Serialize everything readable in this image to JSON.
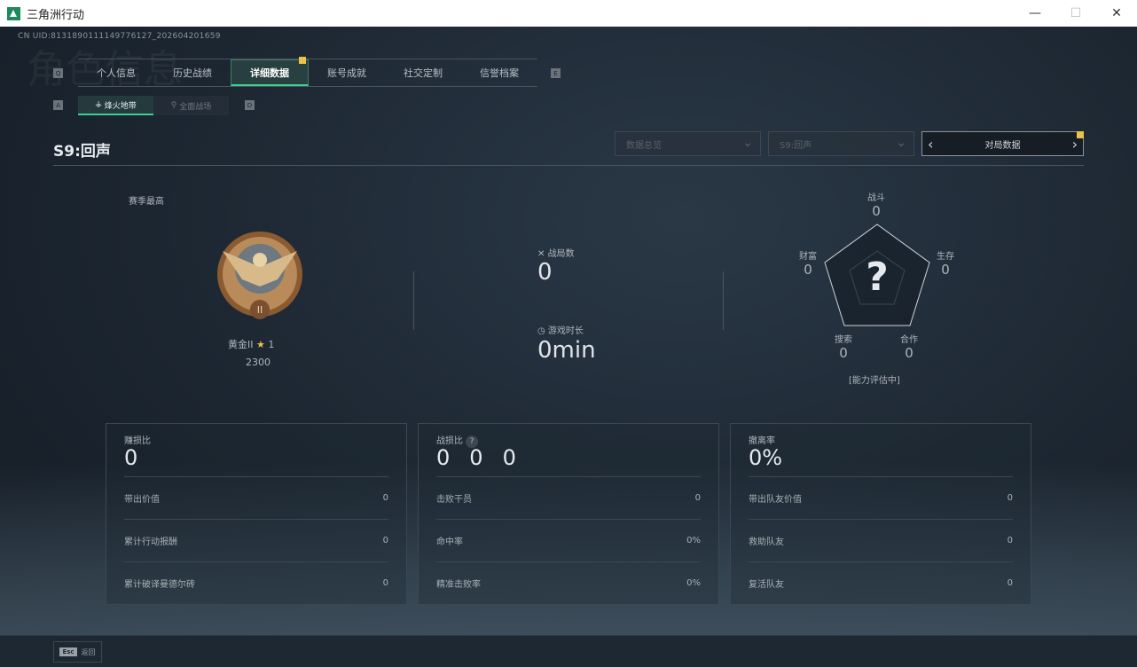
{
  "window": {
    "title": "三角洲行动",
    "minimize": "—",
    "maximize": "☐",
    "close": "✕"
  },
  "uid": "CN UID:8131890111149776127_202604201659",
  "watermark": "角色信息",
  "keys": {
    "prev_tab": "Q",
    "next_tab": "E",
    "prev_sub": "A",
    "next_sub": "D"
  },
  "tabs": [
    {
      "label": "个人信息"
    },
    {
      "label": "历史战绩"
    },
    {
      "label": "详细数据",
      "active": true
    },
    {
      "label": "账号成就"
    },
    {
      "label": "社交定制"
    },
    {
      "label": "信誉档案"
    }
  ],
  "subtabs": [
    {
      "label": "烽火地带",
      "icon": "flame-icon",
      "active": true
    },
    {
      "label": "全面战场",
      "icon": "battle-icon"
    }
  ],
  "season_title": "S9:回声",
  "filters": {
    "overview": "数据总览",
    "season": "S9:回声",
    "mode": "对局数据"
  },
  "rank": {
    "label": "赛季最高",
    "tier": "黄金II",
    "stars": "1",
    "score": "2300"
  },
  "summary": {
    "matches_label": "战局数",
    "matches": "0",
    "time_label": "游戏时长",
    "time": "0min"
  },
  "radar": {
    "center": "?",
    "status": "[能力评估中]",
    "axes": [
      {
        "label": "战斗",
        "value": "0"
      },
      {
        "label": "生存",
        "value": "0"
      },
      {
        "label": "合作",
        "value": "0"
      },
      {
        "label": "搜索",
        "value": "0"
      },
      {
        "label": "财富",
        "value": "0"
      }
    ]
  },
  "panels": [
    {
      "title": "赚损比",
      "value": "0",
      "rows": [
        {
          "label": "带出价值",
          "value": "0"
        },
        {
          "label": "累计行动报酬",
          "value": "0"
        },
        {
          "label": "累计破译曼德尔砖",
          "value": "0"
        }
      ]
    },
    {
      "title": "战损比",
      "value": "0",
      "values": [
        "0",
        "0",
        "0"
      ],
      "help": "?",
      "rows": [
        {
          "label": "击败干员",
          "value": "0"
        },
        {
          "label": "命中率",
          "value": "0%"
        },
        {
          "label": "精准击败率",
          "value": "0%"
        }
      ]
    },
    {
      "title": "撤离率",
      "value": "0%",
      "rows": [
        {
          "label": "带出队友价值",
          "value": "0"
        },
        {
          "label": "救助队友",
          "value": "0"
        },
        {
          "label": "复活队友",
          "value": "0"
        }
      ]
    }
  ],
  "footer": {
    "key": "Esc",
    "label": "返回"
  },
  "colors": {
    "accent": "#3fcf8e",
    "badge": "#e8c24a"
  }
}
